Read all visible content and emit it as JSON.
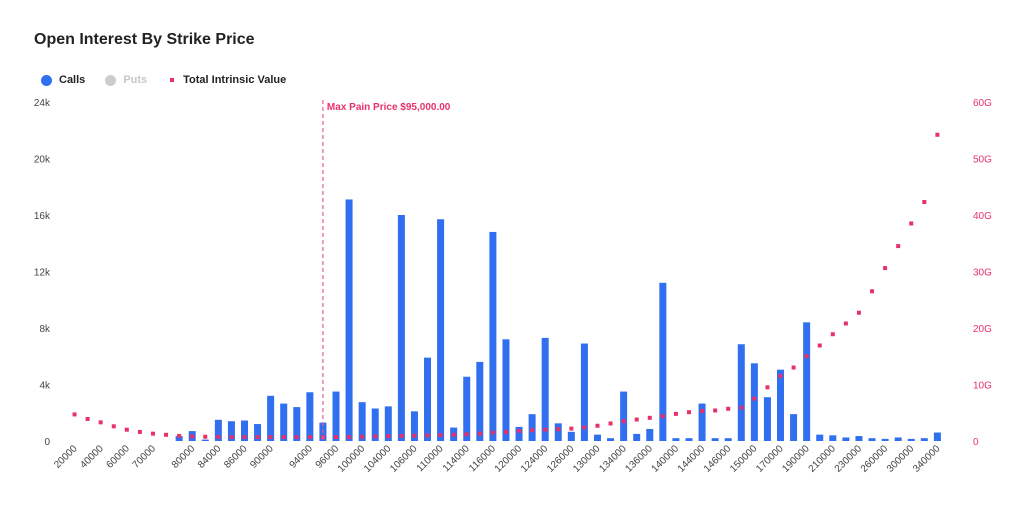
{
  "colors": {
    "calls": "#2f6ff0",
    "puts": "#cccccc",
    "intrinsic": "#e8316a",
    "marker": "#ea5e8c",
    "axis_left": "#444444",
    "axis_right": "#e8316a"
  },
  "chart_data": {
    "type": "bar",
    "title": "Open Interest By Strike Price",
    "legend": {
      "placement": "top-left",
      "items": [
        {
          "label": "Calls",
          "color": "#2f6ff0",
          "shape": "circle",
          "active": true
        },
        {
          "label": "Puts",
          "color": "#cccccc",
          "shape": "circle",
          "active": false
        },
        {
          "label": "Total Intrinsic Value",
          "color": "#e8316a",
          "shape": "square",
          "active": true
        }
      ]
    },
    "y_left": {
      "ylim": [
        0,
        24000
      ],
      "ticks": [
        0,
        4000,
        8000,
        12000,
        16000,
        20000,
        24000
      ],
      "tick_labels": [
        "0",
        "4k",
        "8k",
        "12k",
        "16k",
        "20k",
        "24k"
      ]
    },
    "y_right": {
      "ylim": [
        0,
        60
      ],
      "ticks": [
        0,
        10,
        20,
        30,
        40,
        50,
        60
      ],
      "tick_labels": [
        "0",
        "10G",
        "20G",
        "30G",
        "40G",
        "50G",
        "60G"
      ]
    },
    "annotation": {
      "label": "Max Pain Price $95,000.00",
      "strike": 95000
    },
    "strikes": [
      20000,
      30000,
      40000,
      50000,
      60000,
      65000,
      70000,
      75000,
      78000,
      80000,
      82000,
      84000,
      85000,
      86000,
      88000,
      90000,
      91000,
      92000,
      94000,
      95000,
      96000,
      98000,
      100000,
      102000,
      104000,
      105000,
      106000,
      108000,
      110000,
      112000,
      114000,
      115000,
      116000,
      118000,
      120000,
      122000,
      124000,
      125000,
      126000,
      128000,
      130000,
      132000,
      134000,
      135000,
      136000,
      138000,
      140000,
      142000,
      144000,
      145000,
      146000,
      148000,
      150000,
      160000,
      170000,
      180000,
      190000,
      200000,
      210000,
      220000,
      230000,
      240000,
      260000,
      280000,
      300000,
      320000,
      340000,
      360000
    ],
    "x_tick_labels": [
      {
        "i": 0,
        "label": "20000"
      },
      {
        "i": 2,
        "label": "40000"
      },
      {
        "i": 4,
        "label": "60000"
      },
      {
        "i": 6,
        "label": "70000"
      },
      {
        "i": 9,
        "label": "80000"
      },
      {
        "i": 11,
        "label": "84000"
      },
      {
        "i": 13,
        "label": "86000"
      },
      {
        "i": 15,
        "label": "90000"
      },
      {
        "i": 18,
        "label": "94000"
      },
      {
        "i": 20,
        "label": "96000"
      },
      {
        "i": 22,
        "label": "100000"
      },
      {
        "i": 24,
        "label": "104000"
      },
      {
        "i": 26,
        "label": "106000"
      },
      {
        "i": 28,
        "label": "110000"
      },
      {
        "i": 30,
        "label": "114000"
      },
      {
        "i": 32,
        "label": "116000"
      },
      {
        "i": 34,
        "label": "120000"
      },
      {
        "i": 36,
        "label": "124000"
      },
      {
        "i": 38,
        "label": "126000"
      },
      {
        "i": 40,
        "label": "130000"
      },
      {
        "i": 42,
        "label": "134000"
      },
      {
        "i": 44,
        "label": "136000"
      },
      {
        "i": 46,
        "label": "140000"
      },
      {
        "i": 48,
        "label": "144000"
      },
      {
        "i": 50,
        "label": "146000"
      },
      {
        "i": 52,
        "label": "150000"
      },
      {
        "i": 54,
        "label": "170000"
      },
      {
        "i": 56,
        "label": "190000"
      },
      {
        "i": 58,
        "label": "210000"
      },
      {
        "i": 60,
        "label": "230000"
      },
      {
        "i": 62,
        "label": "260000"
      },
      {
        "i": 64,
        "label": "300000"
      },
      {
        "i": 66,
        "label": "340000"
      }
    ],
    "series": [
      {
        "name": "Calls",
        "axis": "left",
        "type": "bar",
        "values": [
          0,
          0,
          0,
          0,
          0,
          0,
          0,
          0,
          350,
          700,
          100,
          1500,
          1400,
          1450,
          1200,
          3200,
          2650,
          2400,
          3450,
          1300,
          3500,
          17100,
          2750,
          2300,
          2450,
          16000,
          2100,
          5900,
          15700,
          950,
          4550,
          5600,
          14800,
          7200,
          1000,
          1900,
          7300,
          1250,
          650,
          6900,
          450,
          200,
          3500,
          500,
          850,
          11200,
          200,
          200,
          2650,
          200,
          200,
          6850,
          5500,
          3100,
          5050,
          1900,
          8400,
          450,
          400,
          250,
          350,
          200,
          150,
          250,
          150,
          200,
          600,
          0
        ]
      },
      {
        "name": "Puts",
        "axis": "left",
        "type": "bar",
        "hidden": true,
        "values": []
      },
      {
        "name": "Total Intrinsic Value",
        "axis": "right",
        "type": "scatter",
        "values": [
          4.7,
          3.9,
          3.3,
          2.6,
          2.0,
          1.6,
          1.3,
          1.1,
          0.9,
          0.8,
          0.75,
          0.72,
          0.7,
          0.7,
          0.7,
          0.7,
          0.7,
          0.7,
          0.7,
          0.7,
          0.7,
          0.7,
          0.75,
          0.8,
          0.85,
          0.9,
          0.95,
          1.0,
          1.05,
          1.1,
          1.2,
          1.3,
          1.5,
          1.6,
          1.8,
          1.9,
          2.0,
          2.1,
          2.2,
          2.4,
          2.7,
          3.1,
          3.5,
          3.8,
          4.1,
          4.4,
          4.8,
          5.1,
          5.3,
          5.4,
          5.7,
          5.9,
          7.5,
          9.5,
          11.5,
          13.0,
          15.0,
          16.9,
          18.9,
          20.8,
          22.7,
          26.5,
          30.6,
          34.5,
          38.5,
          42.3,
          54.2,
          null
        ]
      }
    ]
  }
}
